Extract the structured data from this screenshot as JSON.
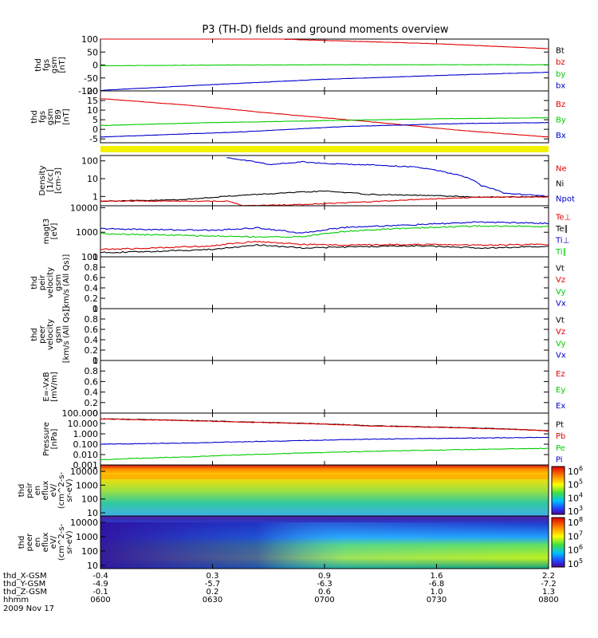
{
  "title": "P3 (TH-D) fields and ground moments overview",
  "colors": {
    "black": "#000000",
    "red": "#e00000",
    "green": "#00cc00",
    "blue": "#0000cc",
    "yellow": "#f2f200"
  },
  "chart_data": [
    {
      "id": "p1",
      "type": "line",
      "ylabel": [
        "thd",
        "fgs",
        "gsm",
        "[nT]"
      ],
      "yticks": [
        100,
        50,
        0,
        -50,
        -100
      ],
      "ylim": [
        -100,
        100
      ],
      "legend": [
        {
          "name": "Bt",
          "color": "black"
        },
        {
          "name": "bz",
          "color": "red"
        },
        {
          "name": "by",
          "color": "green"
        },
        {
          "name": "bx",
          "color": "blue"
        }
      ],
      "series": [
        {
          "name": "bz",
          "color": "red",
          "x": [
            0,
            0.1,
            0.4,
            0.75,
            1
          ],
          "y": [
            115,
            112,
            100,
            82,
            63
          ]
        },
        {
          "name": "by",
          "color": "green",
          "x": [
            0,
            0.3,
            0.6,
            1
          ],
          "y": [
            -3,
            0,
            1,
            1
          ]
        },
        {
          "name": "bx",
          "color": "blue",
          "x": [
            0,
            0.2,
            0.5,
            0.8,
            1
          ],
          "y": [
            -98,
            -80,
            -55,
            -38,
            -28
          ]
        }
      ]
    },
    {
      "id": "p2",
      "type": "line",
      "ylabel": [
        "thd",
        "fgs",
        "gsm",
        "T89",
        "[nT]"
      ],
      "yticks": [
        20,
        15,
        10,
        5,
        0,
        -5
      ],
      "ylim": [
        -7,
        20
      ],
      "legend": [
        {
          "name": "Bz",
          "color": "red"
        },
        {
          "name": "By",
          "color": "green"
        },
        {
          "name": "Bx",
          "color": "blue"
        }
      ],
      "series": [
        {
          "name": "Bz",
          "color": "red",
          "x": [
            0,
            0.2,
            0.4,
            0.6,
            0.8,
            1
          ],
          "y": [
            16,
            12.5,
            8,
            4,
            -0.5,
            -4
          ]
        },
        {
          "name": "By",
          "color": "green",
          "x": [
            0,
            0.25,
            0.5,
            0.75,
            1
          ],
          "y": [
            2,
            3.5,
            4.5,
            5.5,
            6
          ]
        },
        {
          "name": "Bx",
          "color": "blue",
          "x": [
            0,
            0.3,
            0.55,
            0.8,
            1
          ],
          "y": [
            -4,
            -1.5,
            1.5,
            3,
            3.5
          ]
        }
      ]
    },
    {
      "id": "p3",
      "type": "line",
      "log": true,
      "ylabel": [
        "Density",
        "[1/cc]",
        "[cm-3]"
      ],
      "yticks": [
        100,
        10,
        1
      ],
      "ylim": [
        0.3,
        200
      ],
      "legend": [
        {
          "name": "Ne",
          "color": "red"
        },
        {
          "name": "Ni",
          "color": "black"
        },
        {
          "name": "Npot",
          "color": "blue"
        }
      ],
      "series": [
        {
          "name": "Npot",
          "color": "blue",
          "x": [
            0.28,
            0.32,
            0.38,
            0.45,
            0.5,
            0.6,
            0.7,
            0.78,
            0.85,
            0.9,
            1
          ],
          "y": [
            150,
            110,
            60,
            90,
            70,
            60,
            45,
            20,
            4,
            1.5,
            1.0
          ]
        },
        {
          "name": "Ni",
          "color": "black",
          "x": [
            0,
            0.12,
            0.2,
            0.3,
            0.4,
            0.5,
            0.6,
            0.75,
            0.85,
            1
          ],
          "y": [
            0.55,
            0.6,
            0.7,
            1.1,
            1.5,
            2.0,
            1.3,
            1.1,
            0.9,
            1.0
          ]
        },
        {
          "name": "Ne",
          "color": "red",
          "x": [
            0,
            0.28,
            0.32,
            0.45,
            0.6,
            0.75,
            0.85,
            1
          ],
          "y": [
            0.55,
            0.55,
            0.3,
            0.35,
            0.5,
            0.75,
            0.9,
            0.95
          ]
        }
      ]
    },
    {
      "id": "p4",
      "type": "line",
      "log": true,
      "ylabel": [
        "magt3",
        "[eV]"
      ],
      "yticks": [
        10000,
        1000,
        100
      ],
      "ylim": [
        100,
        12000
      ],
      "legend": [
        {
          "name": "Te⊥",
          "color": "red"
        },
        {
          "name": "Te∥",
          "color": "black"
        },
        {
          "name": "Ti⊥",
          "color": "blue"
        },
        {
          "name": "Ti∥",
          "color": "green"
        }
      ],
      "series": [
        {
          "name": "Ti⊥",
          "color": "blue",
          "x": [
            0,
            0.1,
            0.25,
            0.35,
            0.45,
            0.55,
            0.7,
            0.85,
            1
          ],
          "y": [
            1400,
            1300,
            1200,
            1500,
            900,
            1600,
            2000,
            2600,
            2300
          ]
        },
        {
          "name": "Ti∥",
          "color": "green",
          "x": [
            0,
            0.1,
            0.25,
            0.35,
            0.45,
            0.55,
            0.7,
            0.85,
            1
          ],
          "y": [
            900,
            800,
            700,
            650,
            650,
            1100,
            1500,
            1800,
            1700
          ]
        },
        {
          "name": "Te⊥",
          "color": "red",
          "x": [
            0,
            0.1,
            0.25,
            0.35,
            0.45,
            0.55,
            0.7,
            0.85,
            1
          ],
          "y": [
            200,
            220,
            280,
            420,
            320,
            300,
            320,
            300,
            320
          ]
        },
        {
          "name": "Te∥",
          "color": "black",
          "x": [
            0,
            0.1,
            0.25,
            0.35,
            0.45,
            0.55,
            0.7,
            0.85,
            1
          ],
          "y": [
            150,
            160,
            200,
            300,
            230,
            250,
            280,
            230,
            260
          ]
        }
      ]
    },
    {
      "id": "p5",
      "type": "line",
      "ylabel": [
        "thd",
        "peir",
        "velocity",
        "gsm",
        "[km/s (All Qs)]"
      ],
      "yticks": [
        1.0,
        0.8,
        0.6,
        0.4,
        0.2,
        0.0
      ],
      "ylim": [
        0,
        1
      ],
      "legend": [
        {
          "name": "Vt",
          "color": "black"
        },
        {
          "name": "Vz",
          "color": "red"
        },
        {
          "name": "Vy",
          "color": "green"
        },
        {
          "name": "Vx",
          "color": "blue"
        }
      ],
      "series": []
    },
    {
      "id": "p6",
      "type": "line",
      "ylabel": [
        "thd",
        "peer",
        "velocity",
        "gsm",
        "[km/s (All Qs)]"
      ],
      "yticks": [
        1.0,
        0.8,
        0.6,
        0.4,
        0.2,
        0.0
      ],
      "ylim": [
        0,
        1
      ],
      "legend": [
        {
          "name": "Vt",
          "color": "black"
        },
        {
          "name": "Vz",
          "color": "red"
        },
        {
          "name": "Vy",
          "color": "green"
        },
        {
          "name": "Vx",
          "color": "blue"
        }
      ],
      "series": []
    },
    {
      "id": "p7",
      "type": "line",
      "ylabel": [
        "E=-VxB",
        "[mV/m]"
      ],
      "yticks": [
        1.0,
        0.8,
        0.6,
        0.4,
        0.2,
        0.0
      ],
      "ylim": [
        0,
        1
      ],
      "legend": [
        {
          "name": "Ez",
          "color": "red"
        },
        {
          "name": "Ey",
          "color": "green"
        },
        {
          "name": "Ex",
          "color": "blue"
        }
      ],
      "series": []
    },
    {
      "id": "p8",
      "type": "line",
      "log": true,
      "ylabel": [
        "Pressure",
        "[nPa]"
      ],
      "yticks": [
        "100.000",
        "10.000",
        "1.000",
        "0.100",
        "0.010",
        "0.001"
      ],
      "ylim": [
        0.001,
        100
      ],
      "legend": [
        {
          "name": "Pt",
          "color": "black"
        },
        {
          "name": "Pb",
          "color": "red"
        },
        {
          "name": "Pe",
          "color": "green"
        },
        {
          "name": "Pi",
          "color": "blue"
        }
      ],
      "series": [
        {
          "name": "Pt",
          "color": "black",
          "x": [
            0,
            0.3,
            0.6,
            1
          ],
          "y": [
            28,
            15,
            6,
            2
          ]
        },
        {
          "name": "Pb",
          "color": "red",
          "x": [
            0,
            0.3,
            0.6,
            1
          ],
          "y": [
            27,
            14,
            5.7,
            1.9
          ]
        },
        {
          "name": "Pi",
          "color": "blue",
          "x": [
            0,
            0.2,
            0.4,
            0.6,
            0.8,
            1
          ],
          "y": [
            0.1,
            0.13,
            0.2,
            0.3,
            0.38,
            0.45
          ]
        },
        {
          "name": "Pe",
          "color": "green",
          "x": [
            0,
            0.2,
            0.4,
            0.6,
            0.8,
            1
          ],
          "y": [
            0.0032,
            0.006,
            0.012,
            0.02,
            0.03,
            0.04
          ]
        }
      ]
    },
    {
      "id": "s1",
      "type": "heatmap",
      "ylabel": [
        "thd",
        "peir",
        "en",
        "eflux",
        "eV/",
        "(cm^2-s-",
        "sr-eV)"
      ],
      "yticks": [
        10000,
        1000,
        100,
        10
      ],
      "colorbar": {
        "ticks": [
          "10^6",
          "10^5",
          "10^4",
          "10^3"
        ]
      }
    },
    {
      "id": "s2",
      "type": "heatmap",
      "ylabel": [
        "thd",
        "peer",
        "en",
        "eflux",
        "eV/",
        "(cm^2-s-",
        "sr-eV)"
      ],
      "yticks": [
        10000,
        1000,
        100,
        10
      ],
      "colorbar": {
        "ticks": [
          "10^8",
          "10^7",
          "10^6",
          "10^5"
        ]
      }
    }
  ],
  "xaxis": {
    "rows": [
      {
        "label": "thd_X-GSM",
        "values": [
          "-0.4",
          "0.3",
          "0.9",
          "1.6",
          "2.2"
        ]
      },
      {
        "label": "thd_Y-GSM",
        "values": [
          "-4.9",
          "-5.7",
          "-6.3",
          "-6.8",
          "-7.2"
        ]
      },
      {
        "label": "thd_Z-GSM",
        "values": [
          "-0.1",
          "0.2",
          "0.6",
          "1.0",
          "1.3"
        ]
      },
      {
        "label": "hhmm",
        "values": [
          "0600",
          "0630",
          "0700",
          "0730",
          "0800"
        ]
      }
    ],
    "date": "2009 Nov 17"
  }
}
